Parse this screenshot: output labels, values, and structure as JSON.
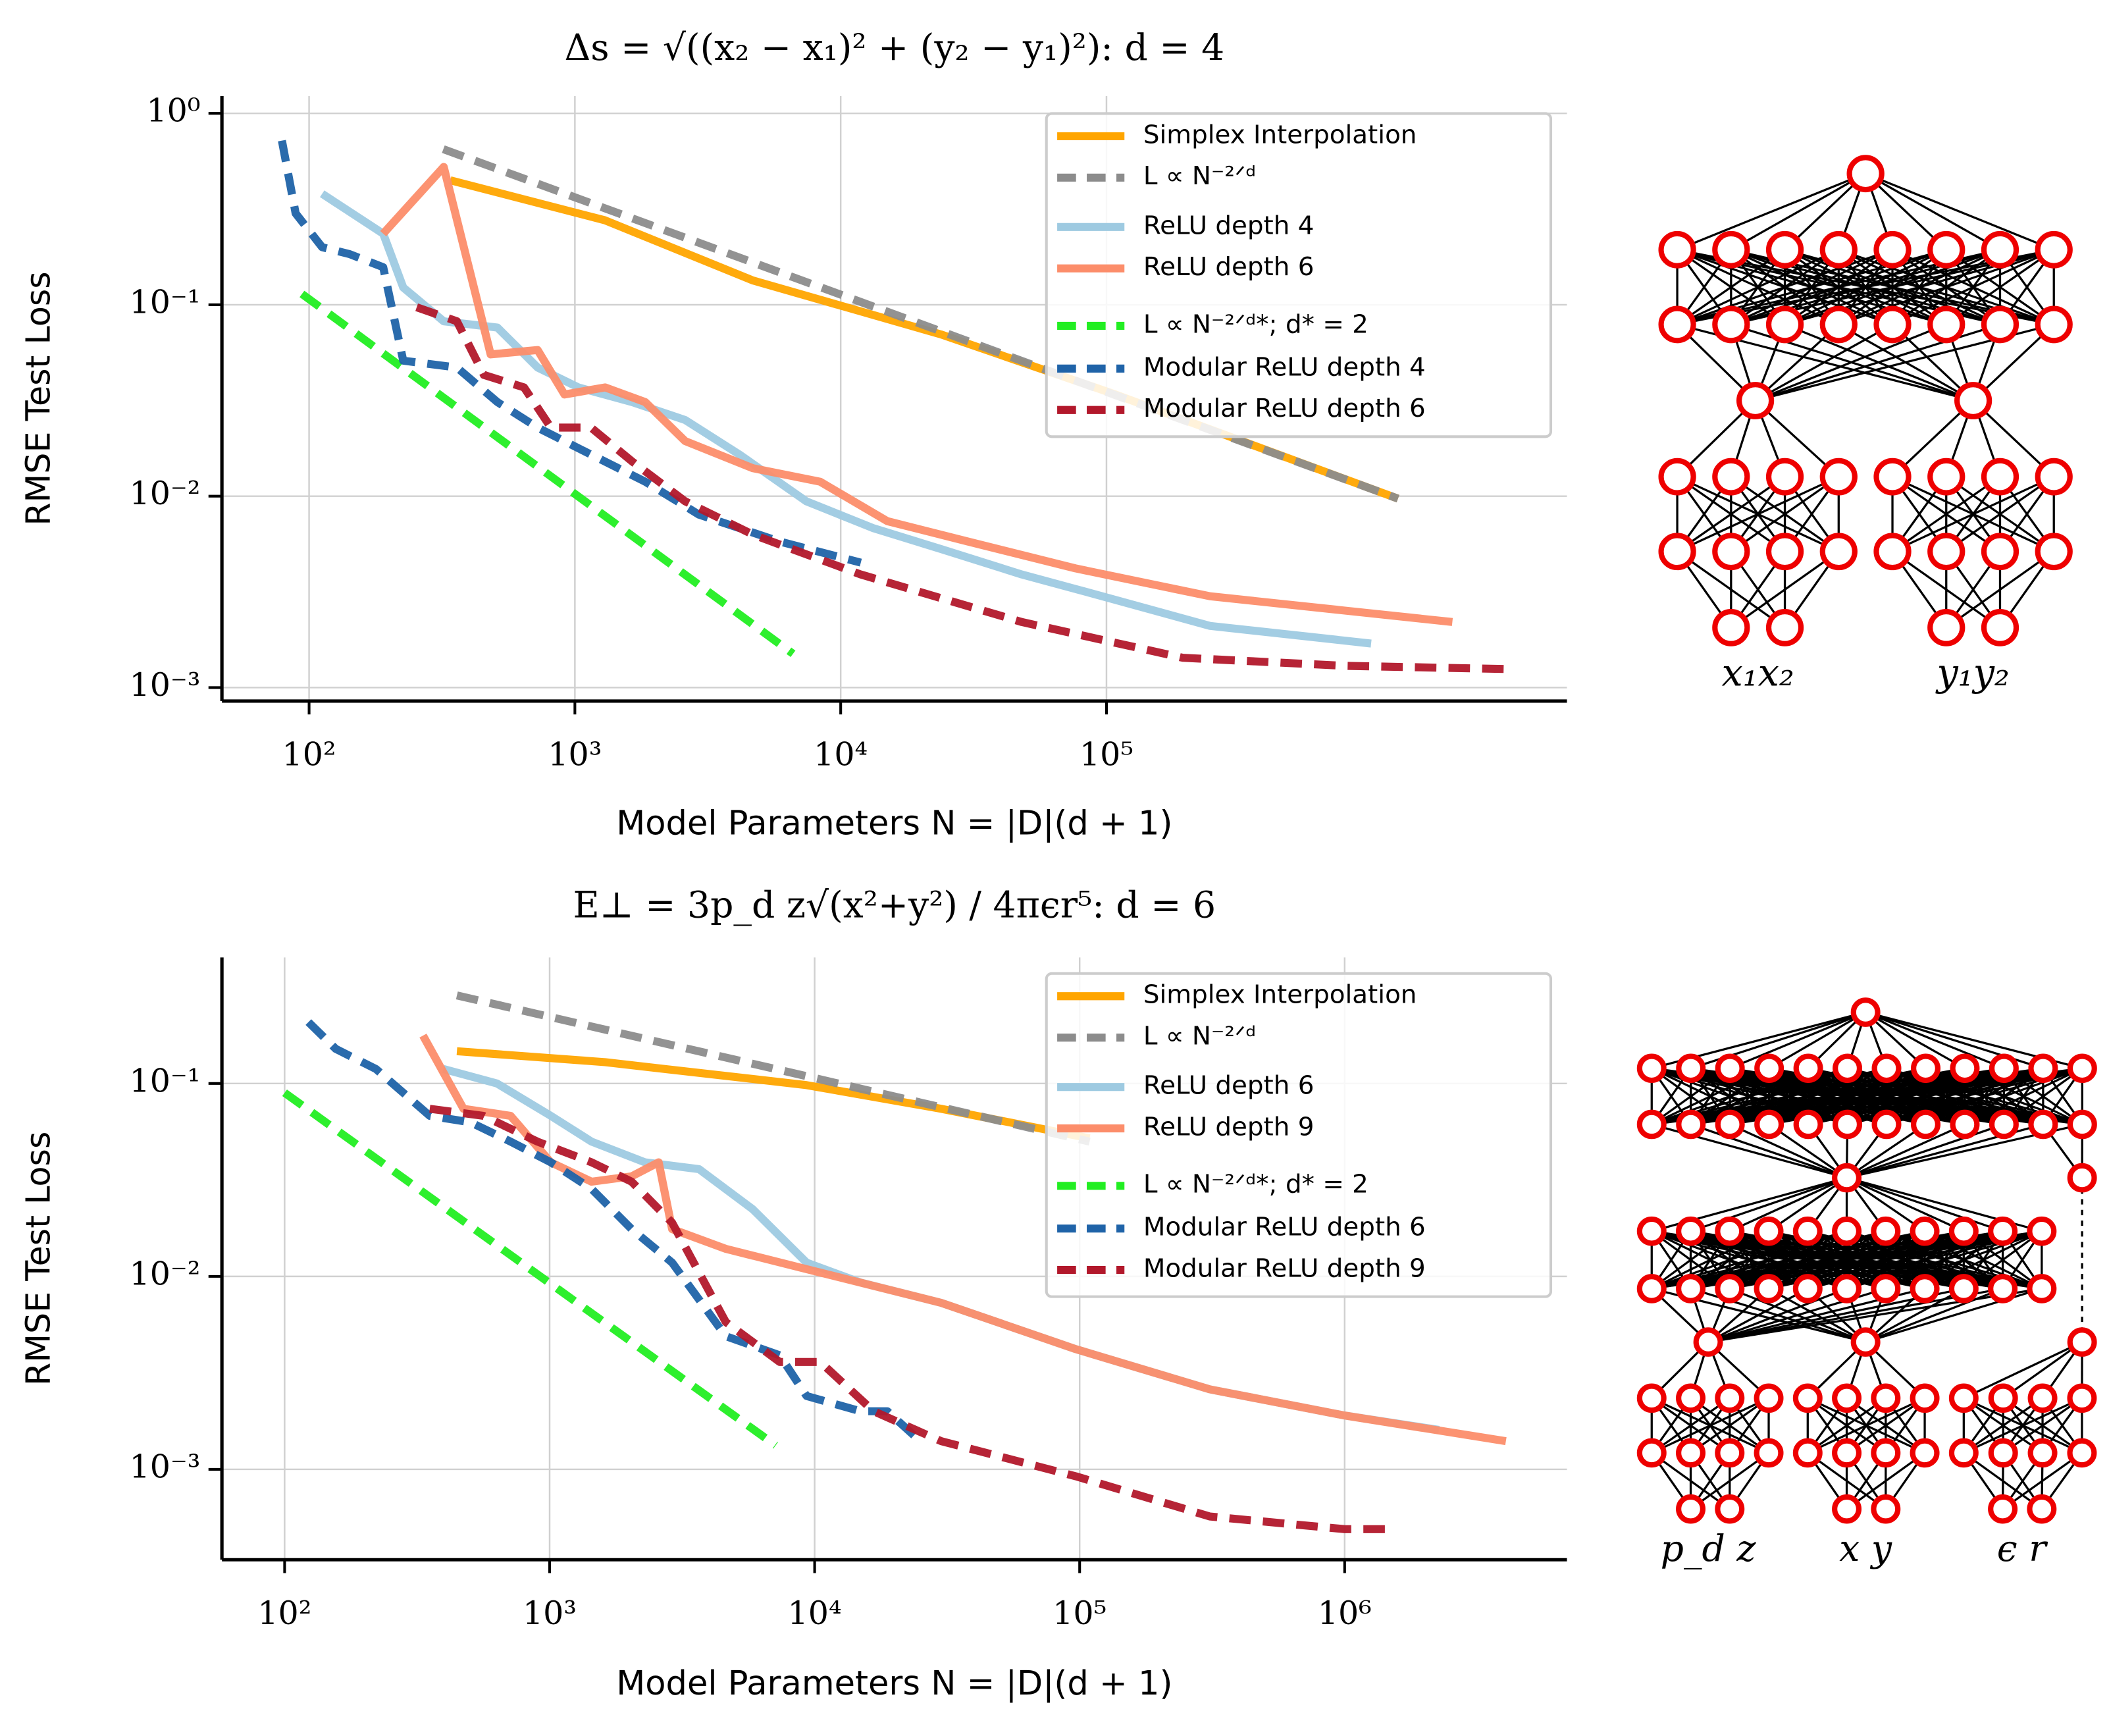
{
  "chart_data": [
    {
      "type": "line",
      "title": "Δs = √((x₂ − x₁)² + (y₂ − y₁)²): d = 4",
      "xlabel": "Model Parameters N = |D|(d + 1)",
      "ylabel": "RMSE Test Loss",
      "xscale": "log",
      "yscale": "log",
      "xlim": [
        47,
        5400000
      ],
      "ylim": [
        0.00085,
        1.23
      ],
      "xticks": [
        {
          "value": 100,
          "label": "10²"
        },
        {
          "value": 1000,
          "label": "10³"
        },
        {
          "value": 10000,
          "label": "10⁴"
        },
        {
          "value": 100000,
          "label": "10⁵"
        }
      ],
      "yticks": [
        {
          "value": 1,
          "label": "10⁰"
        },
        {
          "value": 0.1,
          "label": "10⁻¹"
        },
        {
          "value": 0.01,
          "label": "10⁻²"
        },
        {
          "value": 0.001,
          "label": "10⁻³"
        }
      ],
      "grid": true,
      "legend": "upper right",
      "series": [
        {
          "name": "Simplex Interpolation",
          "color": "#ffa500",
          "style": "solid",
          "x": [
            340,
            1300,
            4670,
            23800,
            108000,
            1250000
          ],
          "values": [
            0.447,
            0.276,
            0.134,
            0.07,
            0.034,
            0.0097
          ]
        },
        {
          "name": "L ∝ N⁻²ᐟᵈ",
          "color": "#8c8c8c",
          "style": "dashed",
          "x": [
            320,
            1250000
          ],
          "values": [
            0.65,
            0.0097
          ]
        },
        {
          "name": "ReLU depth 4",
          "color": "#9ecae1",
          "style": "solid",
          "x": [
            112,
            190,
            226,
            321,
            511,
            724,
            1030,
            1640,
            2600,
            4160,
            7430,
            13300,
            23800,
            48000,
            96400,
            245000,
            990000
          ],
          "values": [
            0.38,
            0.235,
            0.123,
            0.082,
            0.076,
            0.047,
            0.037,
            0.031,
            0.025,
            0.0165,
            0.0094,
            0.0068,
            0.0053,
            0.0039,
            0.003,
            0.0021,
            0.0017
          ]
        },
        {
          "name": "ReLU depth 6",
          "color": "#fc8d6a",
          "style": "solid",
          "x": [
            190,
            321,
            482,
            724,
            914,
            1300,
            1840,
            2600,
            4670,
            8360,
            15000,
            30100,
            76400,
            245000,
            2000000
          ],
          "values": [
            0.235,
            0.525,
            0.055,
            0.058,
            0.034,
            0.037,
            0.031,
            0.0194,
            0.014,
            0.0119,
            0.0074,
            0.0058,
            0.0042,
            0.003,
            0.0022
          ]
        },
        {
          "name": "L ∝ N⁻²ᐟᵈ*; d* = 2",
          "color": "#22ee22",
          "style": "dashed",
          "x": [
            94,
            6620
          ],
          "values": [
            0.114,
            0.0015
          ]
        },
        {
          "name": "Modular ReLU depth 4",
          "color": "#1f63a8",
          "style": "dashed",
          "x": [
            79,
            89,
            112,
            142,
            190,
            226,
            360,
            511,
            724,
            1150,
            1840,
            2930,
            5890,
            11900
          ],
          "values": [
            0.72,
            0.3,
            0.2,
            0.184,
            0.157,
            0.051,
            0.047,
            0.031,
            0.0228,
            0.0165,
            0.0119,
            0.008,
            0.0058,
            0.0045
          ]
        },
        {
          "name": "Modular ReLU depth 6",
          "color": "#b2182b",
          "style": "dashed",
          "x": [
            254,
            360,
            455,
            644,
            813,
            1150,
            1640,
            2600,
            4670,
            11900,
            48000,
            194000,
            785000,
            3180000
          ],
          "values": [
            0.097,
            0.082,
            0.043,
            0.037,
            0.0228,
            0.0228,
            0.0152,
            0.0094,
            0.0063,
            0.0039,
            0.0022,
            0.00143,
            0.0013,
            0.00125
          ]
        }
      ],
      "network_labels": [
        "x₁x₂",
        "y₁y₂"
      ]
    },
    {
      "type": "line",
      "title": "E⊥ = 3p_d z√(x²+y²) / 4πϵr⁵: d = 6",
      "xlabel": "Model Parameters N = |D|(d + 1)",
      "ylabel": "RMSE Test Loss",
      "xscale": "log",
      "yscale": "log",
      "xlim": [
        58,
        6900000
      ],
      "ylim": [
        0.00034,
        0.45
      ],
      "xticks": [
        {
          "value": 100,
          "label": "10²"
        },
        {
          "value": 1000,
          "label": "10³"
        },
        {
          "value": 10000,
          "label": "10⁴"
        },
        {
          "value": 100000,
          "label": "10⁵"
        },
        {
          "value": 1000000,
          "label": "10⁶"
        }
      ],
      "yticks": [
        {
          "value": 0.1,
          "label": "10⁻¹"
        },
        {
          "value": 0.01,
          "label": "10⁻²"
        },
        {
          "value": 0.001,
          "label": "10⁻³"
        }
      ],
      "grid": true,
      "legend": "upper right",
      "series": [
        {
          "name": "Simplex Interpolation",
          "color": "#ffa500",
          "style": "solid",
          "x": [
            447,
            1620,
            9330,
            30000,
            109000
          ],
          "values": [
            0.147,
            0.129,
            0.098,
            0.074,
            0.052
          ]
        },
        {
          "name": "L ∝ N⁻²ᐟᵈ",
          "color": "#8c8c8c",
          "style": "dashed",
          "x": [
            447,
            109000
          ],
          "values": [
            0.286,
            0.05
          ]
        },
        {
          "name": "ReLU depth 6",
          "color": "#9ecae1",
          "style": "solid",
          "x": [
            397,
            634,
            1010,
            1440,
            2290,
            3660,
            5840,
            9330,
            14900,
            30000,
            96700,
            310000,
            1000000,
            2270000
          ],
          "values": [
            0.119,
            0.1,
            0.068,
            0.05,
            0.039,
            0.036,
            0.0223,
            0.0118,
            0.0093,
            0.0073,
            0.0042,
            0.0026,
            0.0019,
            0.0016
          ]
        },
        {
          "name": "ReLU depth 9",
          "color": "#fc8d6a",
          "style": "solid",
          "x": [
            333,
            473,
            712,
            1010,
            1440,
            2040,
            2580,
            2900,
            4620,
            9330,
            30000,
            96700,
            310000,
            1000000,
            4060000
          ],
          "values": [
            0.177,
            0.074,
            0.068,
            0.039,
            0.031,
            0.033,
            0.039,
            0.0176,
            0.0139,
            0.0109,
            0.0073,
            0.0042,
            0.0026,
            0.0019,
            0.0014
          ]
        },
        {
          "name": "L ∝ N⁻²ᐟᵈ*; d* = 2",
          "color": "#22ee22",
          "style": "dashed",
          "x": [
            100,
            7130
          ],
          "values": [
            0.0895,
            0.00133
          ]
        },
        {
          "name": "Modular ReLU depth 6",
          "color": "#1f63a8",
          "style": "dashed",
          "x": [
            123,
            156,
            221,
            353,
            502,
            712,
            1010,
            1440,
            2040,
            2900,
            4620,
            7380,
            9330,
            14900,
            18800,
            23700
          ],
          "values": [
            0.208,
            0.151,
            0.119,
            0.068,
            0.063,
            0.05,
            0.039,
            0.0284,
            0.0176,
            0.0118,
            0.0049,
            0.0039,
            0.0024,
            0.002,
            0.002,
            0.0015
          ]
        },
        {
          "name": "Modular ReLU depth 9",
          "color": "#b2182b",
          "style": "dashed",
          "x": [
            353,
            563,
            900,
            1440,
            2040,
            2900,
            4620,
            7380,
            10500,
            16700,
            30000,
            96700,
            310000,
            1000000,
            1420000
          ],
          "values": [
            0.074,
            0.068,
            0.05,
            0.039,
            0.031,
            0.019,
            0.0058,
            0.0036,
            0.0036,
            0.002,
            0.0014,
            0.00092,
            0.00057,
            0.00049,
            0.00049
          ]
        }
      ],
      "network_labels": [
        "p_d z",
        "x y",
        "ϵ r"
      ]
    }
  ]
}
